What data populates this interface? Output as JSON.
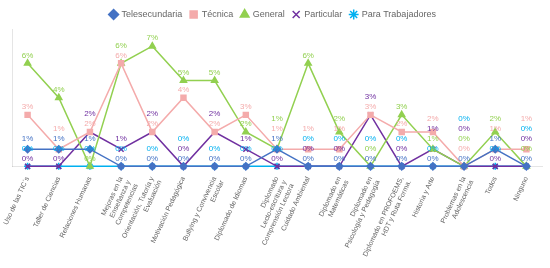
{
  "chart_data": {
    "type": "line",
    "categories": [
      "Uso de las TIC´s",
      "Taller de Ciencias",
      "Relaciones Humanas",
      "Mejoras en la Enseñanza y Competencias",
      "Orientación, Tutoría y Evaluación",
      "Motivación Pedagógica",
      "Bullying y Convivencia Escolar",
      "Diplomado de Idiomas",
      "Diplomado Lecto-escritura y Comprensión Lectora",
      "Cuidado Ambiental",
      "Diplomado en Matemáticas",
      "Diplomado en Psicología y Pedagogía",
      "Diplomado en PROFOEMS, HDT y Ruta Forma.",
      "Historia y Arte",
      "Problemas en la Adolescencia",
      "Todos",
      "Ninguno"
    ],
    "series": [
      {
        "name": "Telesecundaria",
        "color": "#4472C4",
        "marker": "diamond",
        "values": [
          1,
          1,
          1,
          0,
          0,
          0,
          0,
          0,
          1,
          0,
          0,
          0,
          0,
          0,
          0,
          1,
          0
        ],
        "value_labels": [
          "1%",
          "1%",
          "1%",
          "0%",
          "0%",
          "0%",
          "0%",
          "0%",
          "1%",
          "0%",
          "0%",
          "0%",
          "0%",
          "0%",
          "0%",
          "1%",
          "0%"
        ]
      },
      {
        "name": "Técnica",
        "color": "#F4ABAB",
        "marker": "square",
        "values": [
          3,
          1,
          2,
          6,
          2,
          4,
          2,
          3,
          1,
          1,
          1,
          3,
          2,
          2,
          0,
          1,
          1
        ],
        "value_labels": [
          "3%",
          "1%",
          "2%",
          "6%",
          "2%",
          "4%",
          "2%",
          "3%",
          "1%",
          "1%",
          "1%",
          "3%",
          "2%",
          "2%",
          "0%",
          "1%",
          "1%"
        ]
      },
      {
        "name": "General",
        "color": "#92D050",
        "marker": "triangle",
        "values": [
          6,
          4,
          0,
          6,
          7,
          5,
          5,
          2,
          1,
          6,
          2,
          0,
          3,
          1,
          0,
          2,
          0
        ],
        "value_labels": [
          "6%",
          "4%",
          "0%",
          "6%",
          "7%",
          "5%",
          "5%",
          "2%",
          "1%",
          "6%",
          "2%",
          "0%",
          "3%",
          "1%",
          "0%",
          "2%",
          "0%"
        ]
      },
      {
        "name": "Particular",
        "color": "#7030A0",
        "marker": "x",
        "values": [
          0,
          0,
          2,
          1,
          2,
          0,
          2,
          1,
          0,
          0,
          0,
          3,
          0,
          1,
          0,
          0,
          0
        ],
        "value_labels": [
          "0%",
          "0%",
          "2%",
          "1%",
          "2%",
          "0%",
          "2%",
          "1%",
          "0%",
          "0%",
          "0%",
          "3%",
          "0%",
          "1%",
          "0%",
          "0%",
          "0%"
        ]
      },
      {
        "name": "Para Trabajadores",
        "color": "#00B0F0",
        "marker": "star",
        "values": [
          0,
          0,
          0,
          0,
          0,
          0,
          0,
          0,
          0,
          0,
          0,
          0,
          0,
          0,
          0,
          0,
          0
        ],
        "value_labels": [
          "0%",
          "0%",
          "0%",
          "0%",
          "0%",
          "0%",
          "0%",
          "0%",
          "0%",
          "0%",
          "0%",
          "0%",
          "0%",
          "0%",
          "0%",
          "0%",
          "0%"
        ]
      }
    ],
    "ylim": [
      0,
      8
    ],
    "grid": false,
    "legend": "top",
    "data_labels": true,
    "tick_labels": "x"
  }
}
